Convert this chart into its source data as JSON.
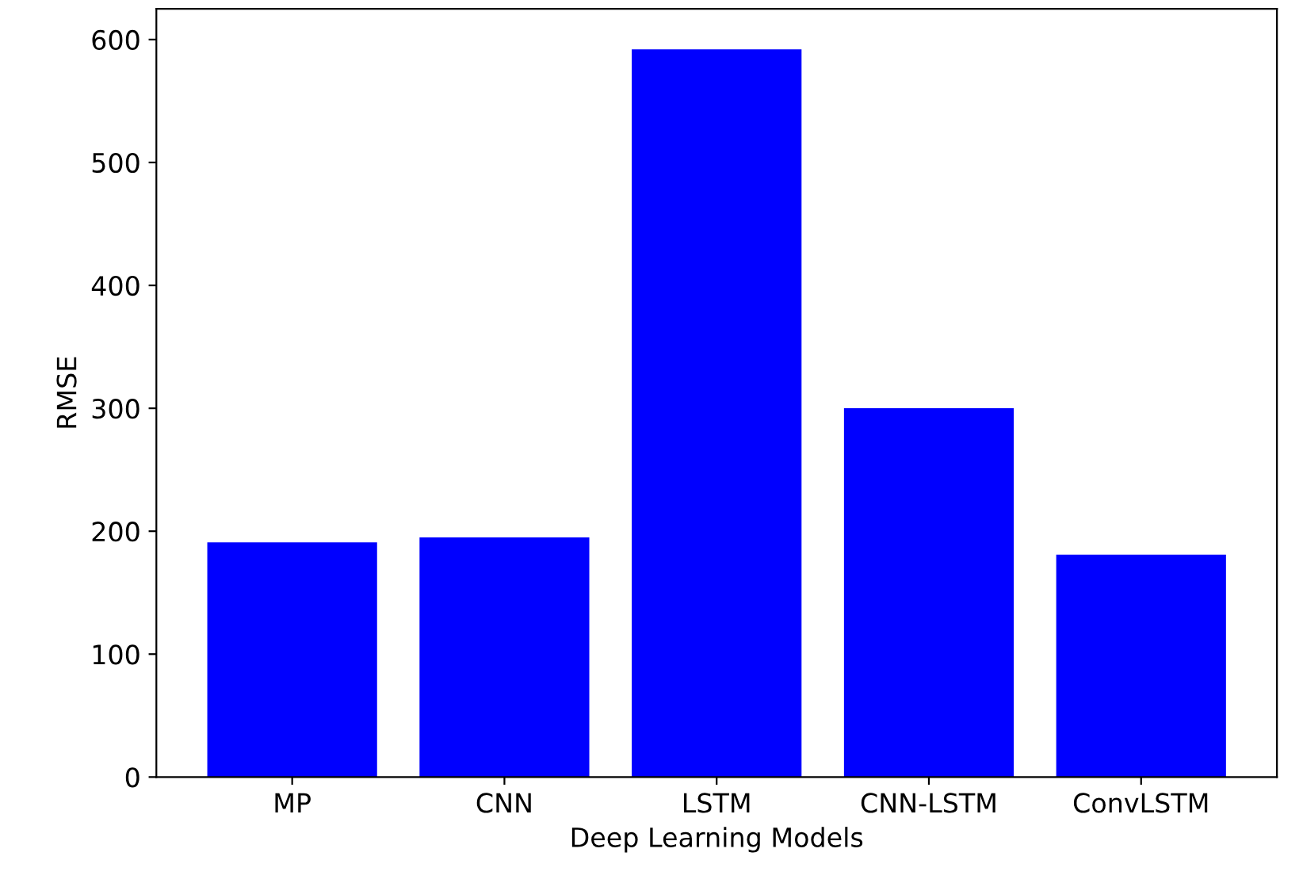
{
  "chart_data": {
    "type": "bar",
    "xlabel": "Deep Learning Models",
    "ylabel": "RMSE",
    "categories": [
      "MP",
      "CNN",
      "LSTM",
      "CNN-LSTM",
      "ConvLSTM"
    ],
    "values": [
      191,
      195,
      592,
      300,
      181
    ],
    "color": "#0000ff",
    "ylim": [
      0,
      625
    ],
    "yticks": [
      0,
      100,
      200,
      300,
      400,
      500,
      600
    ],
    "grid": false
  }
}
